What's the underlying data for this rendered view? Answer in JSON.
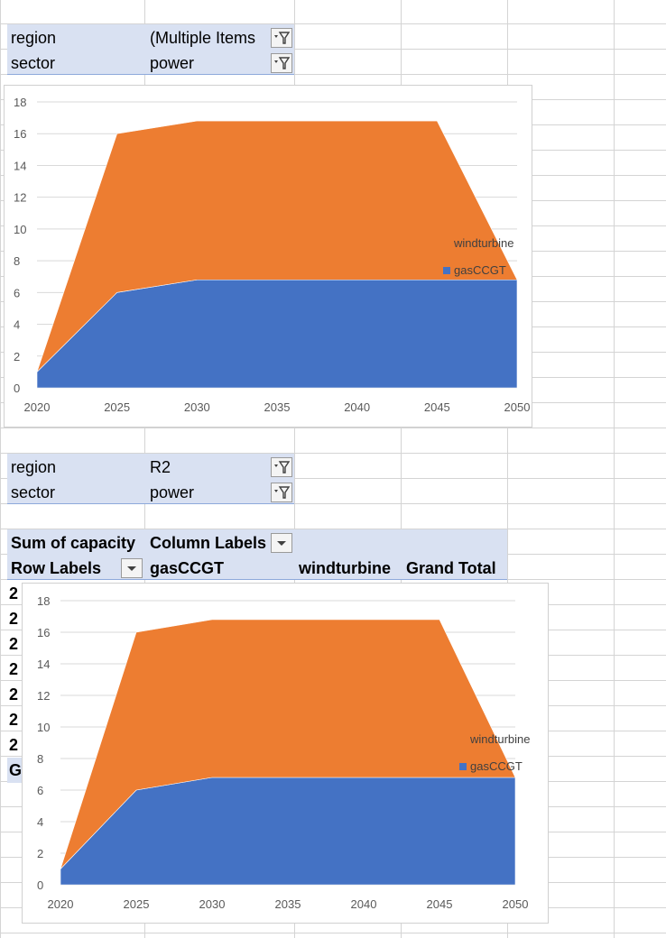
{
  "filters_top": {
    "region_label": "region",
    "region_value": "(Multiple Items",
    "sector_label": "sector",
    "sector_value": "power"
  },
  "filters_bottom": {
    "region_label": "region",
    "region_value": "R2",
    "sector_label": "sector",
    "sector_value": "power"
  },
  "pivot": {
    "values_label": "Sum of capacity",
    "column_labels": "Column Labels",
    "row_labels": "Row Labels",
    "col1": "gasCCGT",
    "col2": "windturbine",
    "col3": "Grand Total",
    "row_stub": "2",
    "grand_stub": "G"
  },
  "colors": {
    "windturbine": "#ed7d31",
    "gasCCGT": "#4472c4",
    "header_fill": "#d9e1f2"
  },
  "icons": [
    "filter-icon",
    "dropdown-icon"
  ],
  "chart_data": [
    {
      "type": "area",
      "stacked": true,
      "x": [
        2020,
        2025,
        2030,
        2035,
        2040,
        2045,
        2050
      ],
      "xticks": [
        "2020",
        "2025",
        "2030",
        "2035",
        "2040",
        "2045",
        "2050"
      ],
      "series": [
        {
          "name": "gasCCGT",
          "values": [
            1,
            6,
            6.8,
            6.8,
            6.8,
            6.8,
            6.8
          ]
        },
        {
          "name": "windturbine",
          "values": [
            0,
            10,
            10,
            10,
            10,
            10,
            0
          ]
        }
      ],
      "ylim": [
        0,
        18
      ],
      "yticks": [
        "0",
        "2",
        "4",
        "6",
        "8",
        "10",
        "12",
        "14",
        "16",
        "18"
      ],
      "grid": true,
      "legend": "right"
    },
    {
      "type": "area",
      "stacked": true,
      "x": [
        2020,
        2025,
        2030,
        2035,
        2040,
        2045,
        2050
      ],
      "xticks": [
        "2020",
        "2025",
        "2030",
        "2035",
        "2040",
        "2045",
        "2050"
      ],
      "series": [
        {
          "name": "gasCCGT",
          "values": [
            1,
            6,
            6.8,
            6.8,
            6.8,
            6.8,
            6.8
          ]
        },
        {
          "name": "windturbine",
          "values": [
            0,
            10,
            10,
            10,
            10,
            10,
            0
          ]
        }
      ],
      "ylim": [
        0,
        18
      ],
      "yticks": [
        "0",
        "2",
        "4",
        "6",
        "8",
        "10",
        "12",
        "14",
        "16",
        "18"
      ],
      "grid": true,
      "legend": "right"
    }
  ]
}
